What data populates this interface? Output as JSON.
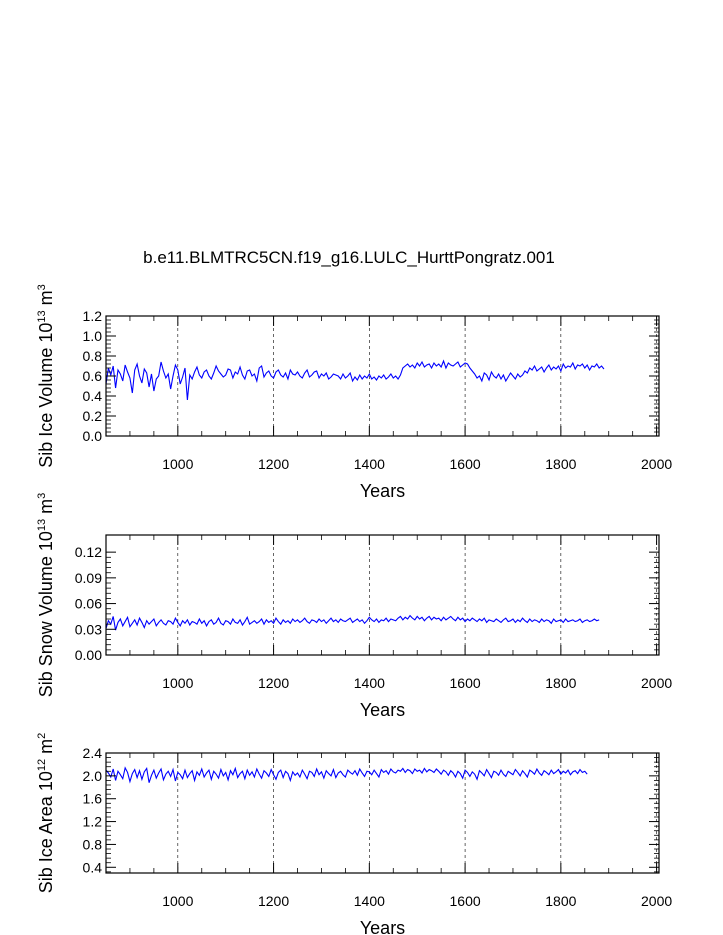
{
  "title": "b.e11.BLMTRC5CN.f19_g16.LULC_HurttPongratz.001",
  "colors": {
    "series": "#0000ff",
    "axis": "#000000",
    "grid": "#000000"
  },
  "chart_data": [
    {
      "type": "line",
      "ylabel": "Sib Ice Volume 10",
      "ylabel_exp": "13",
      "ylabel_unit": " m",
      "ylabel_unit_exp": "3",
      "xlabel": "Years",
      "xlim": [
        850,
        2005
      ],
      "ylim": [
        0.0,
        1.2
      ],
      "xticks": [
        1000,
        1200,
        1400,
        1600,
        1800,
        2000
      ],
      "yticks": [
        0.0,
        0.2,
        0.4,
        0.6,
        0.8,
        1.0,
        1.2
      ],
      "ytick_labels": [
        "0.0",
        "0.2",
        "0.4",
        "0.6",
        "0.8",
        "1.0",
        "1.2"
      ],
      "grid": "vertical dashed",
      "series": [
        {
          "x_start": 850,
          "x_step": 5,
          "values": [
            0.52,
            0.68,
            0.61,
            0.7,
            0.48,
            0.66,
            0.62,
            0.55,
            0.71,
            0.64,
            0.58,
            0.43,
            0.66,
            0.72,
            0.6,
            0.53,
            0.67,
            0.63,
            0.49,
            0.62,
            0.45,
            0.57,
            0.6,
            0.74,
            0.65,
            0.58,
            0.62,
            0.47,
            0.6,
            0.71,
            0.66,
            0.52,
            0.59,
            0.68,
            0.36,
            0.61,
            0.57,
            0.64,
            0.69,
            0.61,
            0.58,
            0.64,
            0.66,
            0.6,
            0.57,
            0.63,
            0.7,
            0.65,
            0.62,
            0.59,
            0.61,
            0.67,
            0.66,
            0.58,
            0.64,
            0.62,
            0.69,
            0.61,
            0.57,
            0.65,
            0.66,
            0.6,
            0.62,
            0.55,
            0.68,
            0.7,
            0.59,
            0.63,
            0.65,
            0.6,
            0.58,
            0.64,
            0.66,
            0.61,
            0.59,
            0.63,
            0.57,
            0.66,
            0.62,
            0.61,
            0.64,
            0.6,
            0.58,
            0.63,
            0.66,
            0.59,
            0.61,
            0.64,
            0.65,
            0.58,
            0.62,
            0.6,
            0.63,
            0.57,
            0.59,
            0.62,
            0.61,
            0.6,
            0.57,
            0.62,
            0.58,
            0.6,
            0.63,
            0.55,
            0.59,
            0.56,
            0.61,
            0.57,
            0.6,
            0.58,
            0.62,
            0.57,
            0.59,
            0.56,
            0.6,
            0.58,
            0.61,
            0.57,
            0.59,
            0.62,
            0.58,
            0.6,
            0.57,
            0.61,
            0.68,
            0.7,
            0.72,
            0.69,
            0.71,
            0.68,
            0.73,
            0.7,
            0.74,
            0.69,
            0.71,
            0.72,
            0.68,
            0.73,
            0.7,
            0.72,
            0.69,
            0.75,
            0.68,
            0.73,
            0.71,
            0.7,
            0.72,
            0.74,
            0.69,
            0.71,
            0.73,
            0.72,
            0.68,
            0.65,
            0.62,
            0.58,
            0.6,
            0.55,
            0.63,
            0.61,
            0.56,
            0.64,
            0.6,
            0.58,
            0.62,
            0.57,
            0.61,
            0.55,
            0.59,
            0.63,
            0.6,
            0.57,
            0.62,
            0.59,
            0.61,
            0.65,
            0.63,
            0.68,
            0.66,
            0.7,
            0.65,
            0.67,
            0.69,
            0.64,
            0.68,
            0.71,
            0.66,
            0.69,
            0.67,
            0.7,
            0.65,
            0.72,
            0.68,
            0.7,
            0.69,
            0.73,
            0.67,
            0.71,
            0.7,
            0.72,
            0.68,
            0.71,
            0.66,
            0.7,
            0.69,
            0.72,
            0.68,
            0.7,
            0.67
          ]
        }
      ]
    },
    {
      "type": "line",
      "ylabel": "Sib Snow Volume 10",
      "ylabel_exp": "13",
      "ylabel_unit": " m",
      "ylabel_unit_exp": "3",
      "xlabel": "Years",
      "xlim": [
        850,
        2005
      ],
      "ylim": [
        0.0,
        0.14
      ],
      "xticks": [
        1000,
        1200,
        1400,
        1600,
        1800,
        2000
      ],
      "yticks": [
        0.0,
        0.03,
        0.06,
        0.09,
        0.12
      ],
      "ytick_labels": [
        "0.00",
        "0.03",
        "0.06",
        "0.09",
        "0.12"
      ],
      "grid": "vertical dashed",
      "series": [
        {
          "x_start": 850,
          "x_step": 5,
          "values": [
            0.031,
            0.04,
            0.036,
            0.045,
            0.029,
            0.038,
            0.042,
            0.034,
            0.039,
            0.044,
            0.033,
            0.037,
            0.041,
            0.035,
            0.043,
            0.038,
            0.032,
            0.04,
            0.036,
            0.039,
            0.042,
            0.034,
            0.038,
            0.041,
            0.037,
            0.035,
            0.04,
            0.039,
            0.036,
            0.043,
            0.038,
            0.034,
            0.04,
            0.037,
            0.041,
            0.035,
            0.039,
            0.038,
            0.036,
            0.042,
            0.037,
            0.04,
            0.034,
            0.039,
            0.041,
            0.036,
            0.038,
            0.043,
            0.037,
            0.035,
            0.04,
            0.039,
            0.036,
            0.042,
            0.038,
            0.037,
            0.041,
            0.035,
            0.039,
            0.044,
            0.036,
            0.038,
            0.04,
            0.037,
            0.039,
            0.042,
            0.036,
            0.041,
            0.038,
            0.04,
            0.037,
            0.043,
            0.039,
            0.036,
            0.041,
            0.038,
            0.04,
            0.037,
            0.042,
            0.039,
            0.041,
            0.038,
            0.04,
            0.043,
            0.039,
            0.037,
            0.041,
            0.04,
            0.038,
            0.042,
            0.039,
            0.041,
            0.037,
            0.04,
            0.043,
            0.039,
            0.041,
            0.038,
            0.042,
            0.04,
            0.039,
            0.041,
            0.043,
            0.038,
            0.04,
            0.042,
            0.039,
            0.041,
            0.037,
            0.04,
            0.044,
            0.041,
            0.039,
            0.042,
            0.038,
            0.041,
            0.04,
            0.043,
            0.039,
            0.042,
            0.041,
            0.04,
            0.043,
            0.045,
            0.041,
            0.044,
            0.042,
            0.046,
            0.043,
            0.041,
            0.045,
            0.042,
            0.044,
            0.04,
            0.043,
            0.045,
            0.041,
            0.044,
            0.042,
            0.043,
            0.04,
            0.044,
            0.041,
            0.043,
            0.045,
            0.042,
            0.04,
            0.044,
            0.041,
            0.043,
            0.039,
            0.042,
            0.04,
            0.043,
            0.041,
            0.039,
            0.042,
            0.04,
            0.043,
            0.038,
            0.041,
            0.04,
            0.039,
            0.042,
            0.04,
            0.038,
            0.041,
            0.043,
            0.039,
            0.04,
            0.042,
            0.038,
            0.041,
            0.039,
            0.043,
            0.04,
            0.038,
            0.042,
            0.039,
            0.041,
            0.04,
            0.038,
            0.042,
            0.039,
            0.041,
            0.04,
            0.037,
            0.042,
            0.039,
            0.04,
            0.041,
            0.038,
            0.042,
            0.039,
            0.04,
            0.041,
            0.039,
            0.04,
            0.042,
            0.038,
            0.04,
            0.041,
            0.039,
            0.04,
            0.042,
            0.04,
            0.041
          ]
        }
      ]
    },
    {
      "type": "line",
      "ylabel": "Sib Ice Area 10",
      "ylabel_exp": "12",
      "ylabel_unit": " m",
      "ylabel_unit_exp": "2",
      "xlabel": "Years",
      "xlim": [
        850,
        2005
      ],
      "ylim": [
        0.3,
        2.4
      ],
      "xticks": [
        1000,
        1200,
        1400,
        1600,
        1800,
        2000
      ],
      "yticks": [
        0.4,
        0.8,
        1.2,
        1.6,
        2.0,
        2.4
      ],
      "ytick_labels": [
        "0.4",
        "0.8",
        "1.2",
        "1.6",
        "2.0",
        "2.4"
      ],
      "grid": "vertical dashed",
      "series": [
        {
          "x_start": 850,
          "x_step": 5,
          "values": [
            2.1,
            2.05,
            1.98,
            2.12,
            1.92,
            2.08,
            2.02,
            1.95,
            2.14,
            2.06,
            1.9,
            2.04,
            2.11,
            1.97,
            2.09,
            1.94,
            2.07,
            2.13,
            1.88,
            2.01,
            2.1,
            1.96,
            2.05,
            2.12,
            1.93,
            2.03,
            2.08,
            1.99,
            2.11,
            1.91,
            2.06,
            2.02,
            1.95,
            2.1,
            1.97,
            2.04,
            2.09,
            1.92,
            2.07,
            2.01,
            2.12,
            1.98,
            2.05,
            2.1,
            1.94,
            2.08,
            2.03,
            1.96,
            2.11,
            2.0,
            2.06,
            1.93,
            2.09,
            2.02,
            2.13,
            1.97,
            2.04,
            2.08,
            1.95,
            2.1,
            2.01,
            2.07,
            1.98,
            2.12,
            2.03,
            1.96,
            2.09,
            2.05,
            1.99,
            2.11,
            2.02,
            1.94,
            2.06,
            2.1,
            1.97,
            2.08,
            2.04,
            1.92,
            2.07,
            2.01,
            2.05,
            1.98,
            2.1,
            2.03,
            1.95,
            2.08,
            2.06,
            1.99,
            2.12,
            2.02,
            2.07,
            1.96,
            2.09,
            2.04,
            2.0,
            2.11,
            1.97,
            2.05,
            2.08,
            2.02,
            1.98,
            2.1,
            2.06,
            2.03,
            2.09,
            2.01,
            2.12,
            2.05,
            1.99,
            2.08,
            2.07,
            2.02,
            2.1,
            2.04,
            1.98,
            2.11,
            2.06,
            2.09,
            2.03,
            2.12,
            2.07,
            2.05,
            2.1,
            2.08,
            2.13,
            2.06,
            2.11,
            2.09,
            2.04,
            2.12,
            2.08,
            2.1,
            2.05,
            2.13,
            2.07,
            2.11,
            2.09,
            2.06,
            2.12,
            2.08,
            2.03,
            2.1,
            2.07,
            2.01,
            2.09,
            2.05,
            1.98,
            2.08,
            2.04,
            1.96,
            2.1,
            2.06,
            1.99,
            2.07,
            2.03,
            1.94,
            2.09,
            2.05,
            2.0,
            2.11,
            2.04,
            1.97,
            2.08,
            2.06,
            2.01,
            2.1,
            2.03,
            1.99,
            2.08,
            2.05,
            2.02,
            2.11,
            2.06,
            2.0,
            2.09,
            2.04,
            1.98,
            2.1,
            2.07,
            2.03,
            2.12,
            2.05,
            2.01,
            2.09,
            2.06,
            2.02,
            2.1,
            2.04,
            2.07,
            2.11,
            2.03,
            2.08,
            2.05,
            2.1,
            2.02,
            2.07,
            2.09,
            2.04,
            2.11,
            2.06,
            2.08,
            2.03
          ]
        }
      ]
    }
  ]
}
